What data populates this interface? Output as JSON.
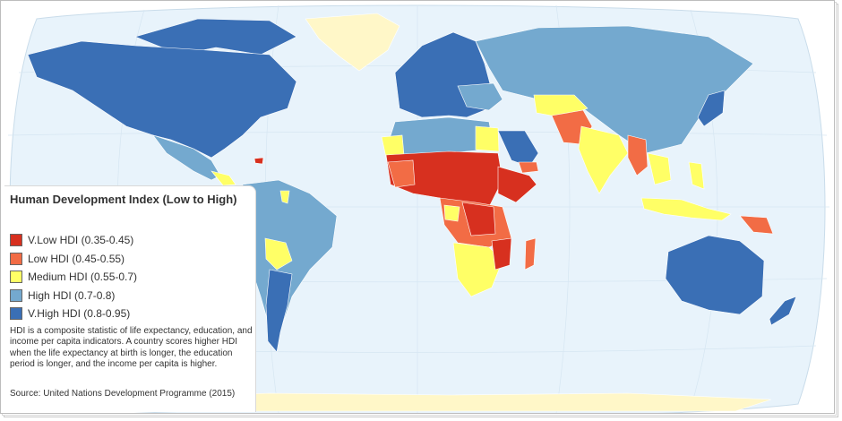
{
  "legend": {
    "title": "Human Development Index (Low to High)",
    "items": [
      {
        "label": "V.Low HDI (0.35-0.45)",
        "color": "#d7301f"
      },
      {
        "label": "Low HDI (0.45-0.55)",
        "color": "#f26c45"
      },
      {
        "label": "Medium HDI (0.55-0.7)",
        "color": "#ffff66"
      },
      {
        "label": "High HDI (0.7-0.8)",
        "color": "#74a9cf"
      },
      {
        "label": "V.High HDI (0.8-0.95)",
        "color": "#3a6fb5"
      }
    ],
    "note": "HDI is a composite statistic of life expectancy, education, and income per capita indicators. A country scores higher HDI when the life expectancy at birth is longer, the education period is longer, and the income per capita is higher.",
    "source": "Source: United Nations Development Programme (2015)"
  },
  "colors": {
    "ocean": "#e8f3fb",
    "no_data": "#fff7c8",
    "v_low": "#d7301f",
    "low": "#f26c45",
    "medium": "#ffff66",
    "high": "#74a9cf",
    "v_high": "#3a6fb5"
  }
}
